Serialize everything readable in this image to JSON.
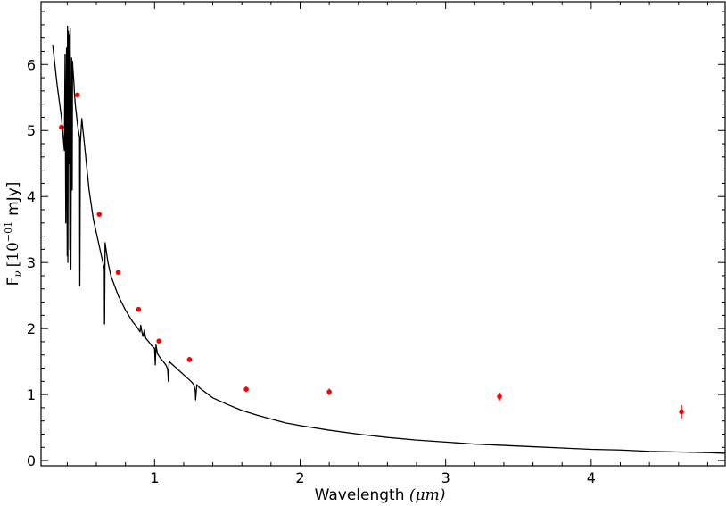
{
  "chart_data": {
    "type": "scatter",
    "xlabel_main": "Wavelength",
    "xlabel_unit": "(μm)",
    "ylabel_main": "F",
    "ylabel_sub": "ν",
    "ylabel_open": "[10",
    "ylabel_exp": "−01",
    "ylabel_close": "mJy]",
    "xlim": [
      0.22,
      4.92
    ],
    "ylim": [
      -0.08,
      6.95
    ],
    "xticks": [
      1,
      2,
      3,
      4
    ],
    "yticks": [
      0,
      1,
      2,
      3,
      4,
      5,
      6
    ],
    "grid": false,
    "colors": {
      "points": "#ff0000",
      "model": "#000000"
    },
    "series": [
      {
        "kind": "points",
        "x": [
          0.36,
          0.47,
          0.62,
          0.75,
          0.89,
          1.03,
          1.24,
          1.63,
          2.2,
          3.37,
          4.62
        ],
        "y": [
          5.05,
          5.54,
          3.73,
          2.85,
          2.29,
          1.81,
          1.53,
          1.08,
          1.04,
          0.97,
          0.74
        ],
        "yerr": [
          0.03,
          0.03,
          0.02,
          0.02,
          0.02,
          0.02,
          0.04,
          0.04,
          0.05,
          0.06,
          0.1
        ]
      },
      {
        "kind": "line",
        "x": [
          0.3,
          0.33,
          0.36,
          0.38,
          0.385,
          0.39,
          0.395,
          0.4,
          0.402,
          0.404,
          0.408,
          0.41,
          0.414,
          0.418,
          0.42,
          0.425,
          0.43,
          0.434,
          0.436,
          0.44,
          0.445,
          0.45,
          0.455,
          0.46,
          0.47,
          0.48,
          0.485,
          0.486,
          0.4865,
          0.49,
          0.5,
          0.52,
          0.55,
          0.58,
          0.6,
          0.63,
          0.645,
          0.655,
          0.656,
          0.6565,
          0.66,
          0.68,
          0.7,
          0.75,
          0.8,
          0.85,
          0.88,
          0.9,
          0.905,
          0.91,
          0.92,
          0.93,
          0.935,
          0.94,
          0.96,
          0.98,
          1.0,
          1.005,
          1.01,
          1.02,
          1.04,
          1.06,
          1.08,
          1.09,
          1.095,
          1.1,
          1.12,
          1.15,
          1.2,
          1.25,
          1.27,
          1.28,
          1.282,
          1.29,
          1.31,
          1.4,
          1.5,
          1.6,
          1.7,
          1.8,
          1.9,
          2.0,
          2.2,
          2.4,
          2.6,
          2.8,
          3.0,
          3.2,
          3.4,
          3.6,
          3.8,
          4.0,
          4.2,
          4.4,
          4.6,
          4.8,
          4.92
        ],
        "y": [
          6.3,
          5.7,
          5.2,
          4.7,
          6.15,
          3.6,
          6.25,
          3.1,
          6.58,
          3.0,
          6.5,
          4.5,
          6.45,
          3.2,
          6.55,
          2.9,
          6.1,
          4.1,
          6.05,
          5.9,
          5.75,
          5.55,
          5.4,
          5.3,
          5.1,
          4.95,
          4.9,
          3.2,
          2.65,
          4.8,
          5.18,
          4.75,
          4.1,
          3.65,
          3.45,
          3.15,
          3.0,
          2.9,
          2.07,
          2.07,
          3.3,
          3.0,
          2.8,
          2.5,
          2.28,
          2.1,
          2.02,
          1.95,
          2.05,
          1.98,
          1.88,
          1.98,
          1.9,
          1.85,
          1.8,
          1.74,
          1.7,
          1.45,
          1.75,
          1.62,
          1.55,
          1.5,
          1.44,
          1.38,
          1.2,
          1.5,
          1.46,
          1.4,
          1.3,
          1.2,
          1.15,
          1.05,
          0.92,
          1.15,
          1.1,
          0.95,
          0.85,
          0.76,
          0.69,
          0.63,
          0.57,
          0.53,
          0.46,
          0.4,
          0.35,
          0.31,
          0.28,
          0.25,
          0.23,
          0.21,
          0.19,
          0.17,
          0.16,
          0.14,
          0.13,
          0.12,
          0.11
        ]
      }
    ]
  }
}
